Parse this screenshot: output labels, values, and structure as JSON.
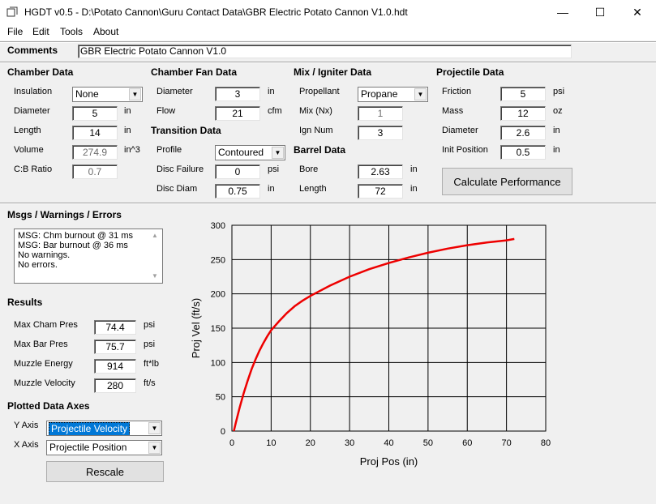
{
  "window": {
    "title": "HGDT v0.5 - D:\\Potato Cannon\\Guru Contact Data\\GBR Electric Potato Cannon V1.0.hdt",
    "minimize": "—",
    "maximize": "☐",
    "close": "✕"
  },
  "menu": [
    "File",
    "Edit",
    "Tools",
    "About"
  ],
  "comments": {
    "label": "Comments",
    "value": "GBR Electric Potato Cannon V1.0"
  },
  "chamber": {
    "title": "Chamber Data",
    "insulation_label": "Insulation",
    "insulation_value": "None",
    "diameter_label": "Diameter",
    "diameter_value": "5",
    "diameter_unit": "in",
    "length_label": "Length",
    "length_value": "14",
    "length_unit": "in",
    "volume_label": "Volume",
    "volume_value": "274.9",
    "volume_unit": "in^3",
    "cb_label": "C:B Ratio",
    "cb_value": "0.7"
  },
  "fan": {
    "title": "Chamber Fan Data",
    "diameter_label": "Diameter",
    "diameter_value": "3",
    "diameter_unit": "in",
    "flow_label": "Flow",
    "flow_value": "21",
    "flow_unit": "cfm"
  },
  "transition": {
    "title": "Transition Data",
    "profile_label": "Profile",
    "profile_value": "Contoured",
    "disc_failure_label": "Disc Failure",
    "disc_failure_value": "0",
    "disc_failure_unit": "psi",
    "disc_diam_label": "Disc Diam",
    "disc_diam_value": "0.75",
    "disc_diam_unit": "in"
  },
  "mix": {
    "title": "Mix / Igniter Data",
    "propellant_label": "Propellant",
    "propellant_value": "Propane",
    "mix_label": "Mix (Nx)",
    "mix_value": "1",
    "ign_label": "Ign Num",
    "ign_value": "3"
  },
  "barrel": {
    "title": "Barrel Data",
    "bore_label": "Bore",
    "bore_value": "2.63",
    "bore_unit": "in",
    "length_label": "Length",
    "length_value": "72",
    "length_unit": "in"
  },
  "projectile": {
    "title": "Projectile Data",
    "friction_label": "Friction",
    "friction_value": "5",
    "friction_unit": "psi",
    "mass_label": "Mass",
    "mass_value": "12",
    "mass_unit": "oz",
    "diameter_label": "Diameter",
    "diameter_value": "2.6",
    "diameter_unit": "in",
    "init_label": "Init Position",
    "init_value": "0.5",
    "init_unit": "in"
  },
  "calculate_button": "Calculate Performance",
  "messages": {
    "title": "Msgs / Warnings / Errors",
    "lines": [
      "MSG: Chm burnout @ 31 ms",
      "MSG: Bar burnout @ 36 ms",
      "No warnings.",
      "No errors."
    ]
  },
  "results": {
    "title": "Results",
    "max_cham_label": "Max Cham Pres",
    "max_cham_value": "74.4",
    "max_cham_unit": "psi",
    "max_bar_label": "Max Bar Pres",
    "max_bar_value": "75.7",
    "max_bar_unit": "psi",
    "energy_label": "Muzzle Energy",
    "energy_value": "914",
    "energy_unit": "ft*lb",
    "velocity_label": "Muzzle Velocity",
    "velocity_value": "280",
    "velocity_unit": "ft/s"
  },
  "axes": {
    "title": "Plotted Data Axes",
    "y_label": "Y Axis",
    "y_value": "Projectile Velocity",
    "x_label": "X Axis",
    "x_value": "Projectile Position",
    "rescale": "Rescale"
  },
  "colors": {
    "curve": "#ee0000",
    "selection": "#0078d7"
  },
  "chart_data": {
    "type": "line",
    "xlabel": "Proj Pos (in)",
    "ylabel": "Proj Vel (ft/s)",
    "xlim": [
      0,
      80
    ],
    "ylim": [
      0,
      300
    ],
    "xticks": [
      0,
      10,
      20,
      30,
      40,
      50,
      60,
      70,
      80
    ],
    "yticks": [
      0,
      50,
      100,
      150,
      200,
      250,
      300
    ],
    "grid": true,
    "series": [
      {
        "x": [
          0.5,
          1,
          2,
          3,
          4,
          5,
          6,
          7,
          8,
          9,
          10,
          12,
          14,
          16,
          18,
          20,
          25,
          30,
          35,
          40,
          45,
          50,
          55,
          60,
          65,
          70,
          72
        ],
        "y": [
          0,
          12,
          35,
          55,
          73,
          90,
          104,
          117,
          128,
          138,
          147,
          160,
          172,
          182,
          190,
          197,
          212,
          225,
          236,
          245,
          253,
          260,
          266,
          271,
          275,
          278,
          280
        ]
      }
    ]
  }
}
